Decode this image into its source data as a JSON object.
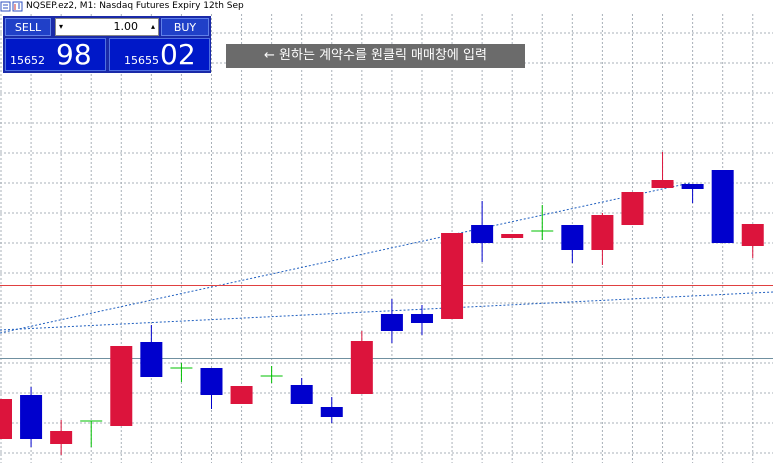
{
  "header": {
    "title": "NQSEP.ez2, M1:  Nasdaq Futures Expiry 12th Sep"
  },
  "trade_panel": {
    "sell_label": "SELL",
    "lot": "1.00",
    "buy_label": "BUY",
    "sell_price_main": "15652",
    "sell_price_pips": "98",
    "buy_price_main": "15655",
    "buy_price_pips": "02"
  },
  "annotation": "← 원하는 계약수를 원클릭 매매창에 입력",
  "chart_data": {
    "type": "candlestick",
    "ylim": [
      15633.7,
      15680
    ],
    "up_color": "#dc143c",
    "down_color": "#0000cd",
    "doji_color": "#00c000",
    "candles": [
      {
        "o": 15636.1,
        "h": 15640.1,
        "l": 15636.1,
        "c": 15640.1
      },
      {
        "o": 15640.5,
        "h": 15641.3,
        "l": 15635.3,
        "c": 15636.1
      },
      {
        "o": 15635.6,
        "h": 15638.0,
        "l": 15634.5,
        "c": 15636.9
      },
      {
        "o": 15637.9,
        "h": 15637.9,
        "l": 15635.3,
        "c": 15637.9
      },
      {
        "o": 15637.4,
        "h": 15645.4,
        "l": 15637.4,
        "c": 15645.4
      },
      {
        "o": 15645.8,
        "h": 15647.5,
        "l": 15642.3,
        "c": 15642.3
      },
      {
        "o": 15643.2,
        "h": 15643.7,
        "l": 15641.8,
        "c": 15643.2
      },
      {
        "o": 15643.2,
        "h": 15643.2,
        "l": 15639.1,
        "c": 15640.5
      },
      {
        "o": 15639.6,
        "h": 15641.4,
        "l": 15639.6,
        "c": 15641.4
      },
      {
        "o": 15642.4,
        "h": 15643.4,
        "l": 15641.7,
        "c": 15642.4
      },
      {
        "o": 15641.5,
        "h": 15642.2,
        "l": 15639.6,
        "c": 15639.6
      },
      {
        "o": 15639.3,
        "h": 15640.3,
        "l": 15637.7,
        "c": 15638.3
      },
      {
        "o": 15640.6,
        "h": 15646.9,
        "l": 15640.6,
        "c": 15645.9
      },
      {
        "o": 15648.6,
        "h": 15650.1,
        "l": 15645.7,
        "c": 15646.9
      },
      {
        "o": 15648.6,
        "h": 15649.5,
        "l": 15646.5,
        "c": 15647.7
      },
      {
        "o": 15648.1,
        "h": 15656.7,
        "l": 15648.1,
        "c": 15656.7
      },
      {
        "o": 15657.5,
        "h": 15659.9,
        "l": 15653.8,
        "c": 15655.7
      },
      {
        "o": 15656.2,
        "h": 15656.6,
        "l": 15656.2,
        "c": 15656.6
      },
      {
        "o": 15656.9,
        "h": 15659.5,
        "l": 15656.0,
        "c": 15656.9
      },
      {
        "o": 15657.5,
        "h": 15657.5,
        "l": 15653.7,
        "c": 15655.0
      },
      {
        "o": 15655.0,
        "h": 15658.7,
        "l": 15653.5,
        "c": 15658.5
      },
      {
        "o": 15657.5,
        "h": 15660.8,
        "l": 15657.5,
        "c": 15660.8
      },
      {
        "o": 15661.2,
        "h": 15664.8,
        "l": 15661.2,
        "c": 15662.0
      },
      {
        "o": 15661.6,
        "h": 15661.6,
        "l": 15659.7,
        "c": 15661.1
      },
      {
        "o": 15663.0,
        "h": 15663.0,
        "l": 15655.7,
        "c": 15655.7
      },
      {
        "o": 15655.4,
        "h": 15657.6,
        "l": 15654.2,
        "c": 15657.6
      }
    ]
  }
}
